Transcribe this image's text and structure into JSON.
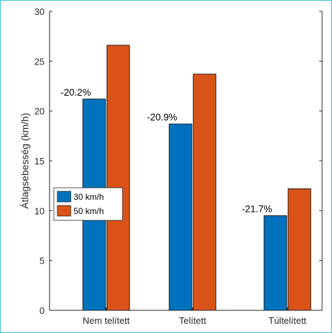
{
  "chart_data": {
    "type": "bar",
    "title": "",
    "xlabel": "",
    "ylabel": "Átlagsebesség (km/h)",
    "ylim": [
      0,
      30
    ],
    "yticks": [
      "0",
      "5",
      "10",
      "15",
      "20",
      "25",
      "30"
    ],
    "categories": [
      "Nem telített",
      "Telített",
      "Túltelített"
    ],
    "series": [
      {
        "name": "30 km/h",
        "values": [
          21.2,
          18.7,
          9.5
        ],
        "color": "#0072BD"
      },
      {
        "name": "50 km/h",
        "values": [
          26.6,
          23.7,
          12.2
        ],
        "color": "#D95319"
      }
    ],
    "data_labels": [
      "-20.2%",
      "-20.9%",
      "-21.7%"
    ],
    "legend_position": "west",
    "grid": false
  }
}
